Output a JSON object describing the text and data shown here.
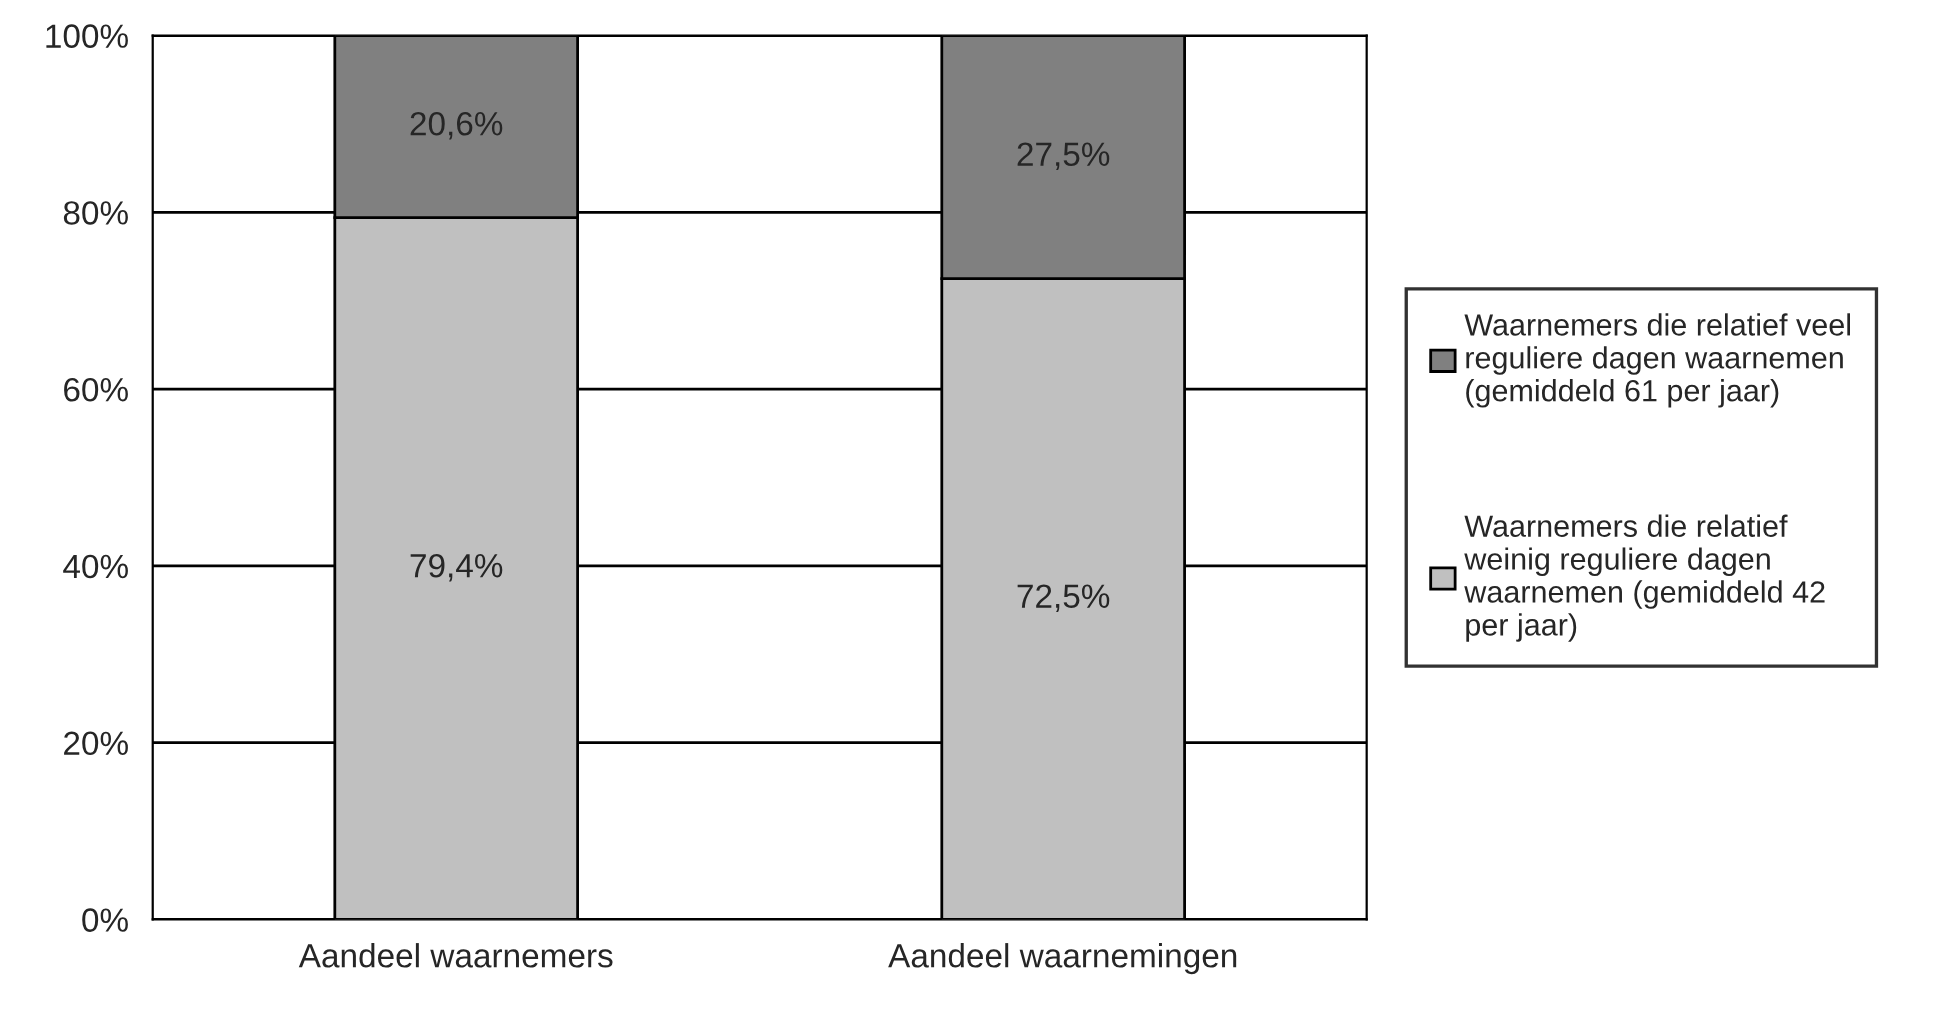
{
  "chart_data": {
    "type": "bar",
    "stacked": true,
    "categories": [
      "Aandeel waarnemers",
      "Aandeel waarnemingen"
    ],
    "series": [
      {
        "name": "Waarnemers die relatief\nweinig reguliere dagen\nwaarnemen (gemiddeld 42\nper jaar)",
        "color": "#c0c0c0",
        "values": [
          79.4,
          72.5
        ],
        "value_labels": [
          "79,4%",
          "72,5%"
        ]
      },
      {
        "name": "Waarnemers die relatief veel\nreguliere dagen waarnemen\n(gemiddeld 61 per jaar)",
        "color": "#808080",
        "values": [
          20.6,
          27.5
        ],
        "value_labels": [
          "20,6%",
          "27,5%"
        ]
      }
    ],
    "ylim": [
      0,
      100
    ],
    "yticks": [
      {
        "value": 0,
        "label": "0%"
      },
      {
        "value": 20,
        "label": "20%"
      },
      {
        "value": 40,
        "label": "40%"
      },
      {
        "value": 60,
        "label": "60%"
      },
      {
        "value": 80,
        "label": "80%"
      },
      {
        "value": 100,
        "label": "100%"
      }
    ],
    "grid": "y",
    "legend": "right"
  }
}
